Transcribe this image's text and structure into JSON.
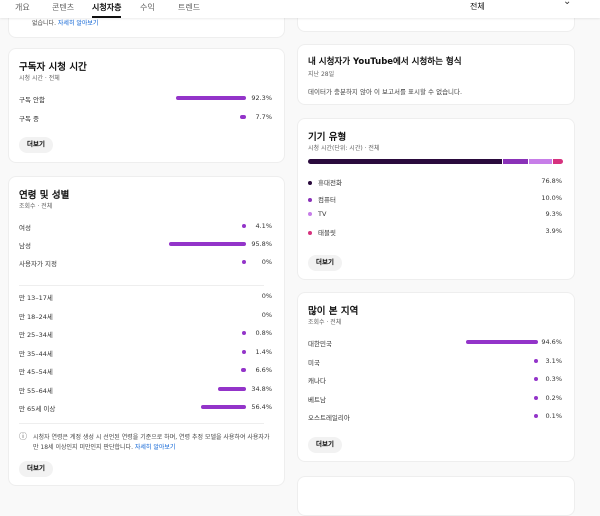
{
  "header": {
    "tabs": [
      "개요",
      "콘텐츠",
      "시청자층",
      "수익",
      "트렌드"
    ],
    "active_tab": 2,
    "filter": "전체"
  },
  "top_card": {
    "text": "없습니다. ",
    "link": "자세히 알아보기"
  },
  "subscriber_watch": {
    "title": "구독자 시청 시간",
    "subtitle": "시청 시간 · 전체",
    "rows": [
      {
        "label": "구독 안함",
        "value": 92.3,
        "pct": "92.3%"
      },
      {
        "label": "구독 중",
        "value": 7.7,
        "pct": "7.7%"
      }
    ],
    "button": "더보기"
  },
  "age_gender": {
    "title": "연령 및 성별",
    "subtitle": "조회수 · 전체",
    "gender": [
      {
        "label": "여성",
        "value": 4.1,
        "pct": "4.1%"
      },
      {
        "label": "남성",
        "value": 95.8,
        "pct": "95.8%"
      },
      {
        "label": "사용자가 지정",
        "value": 0,
        "pct": "0%"
      }
    ],
    "ages": [
      {
        "label": "만 13–17세",
        "value": 0,
        "pct": "0%"
      },
      {
        "label": "만 18–24세",
        "value": 0,
        "pct": "0%"
      },
      {
        "label": "만 25–34세",
        "value": 0.8,
        "pct": "0.8%"
      },
      {
        "label": "만 35–44세",
        "value": 1.4,
        "pct": "1.4%"
      },
      {
        "label": "만 45–54세",
        "value": 6.6,
        "pct": "6.6%"
      },
      {
        "label": "만 55–64세",
        "value": 34.8,
        "pct": "34.8%"
      },
      {
        "label": "만 65세 이상",
        "value": 56.4,
        "pct": "56.4%"
      }
    ],
    "note": "시청자 연령은 계정 생성 시 선언된 연령을 기준으로 하며, 연령 추정 모델을 사용하여 사용자가 만 18세 이상인지 미만인지 판단합니다. ",
    "note_link": "자세히 알아보기",
    "button": "더보기"
  },
  "formats": {
    "title": "내 시청자가 YouTube에서 시청하는 형식",
    "subtitle": "지난 28일",
    "message": "데이터가 충분하지 않아 이 보고서를 표시할 수 없습니다."
  },
  "device": {
    "title": "기기 유형",
    "subtitle": "시청 시간(단위: 시간) · 전체",
    "rows": [
      {
        "label": "휴대전화",
        "value": 76.8,
        "pct": "76.8%",
        "color": "#2a0a3d"
      },
      {
        "label": "컴퓨터",
        "value": 10.0,
        "pct": "10.0%",
        "color": "#8a31b8"
      },
      {
        "label": "TV",
        "value": 9.3,
        "pct": "9.3%",
        "color": "#c77ee8"
      },
      {
        "label": "태블릿",
        "value": 3.9,
        "pct": "3.9%",
        "color": "#d6327e"
      }
    ],
    "button": "더보기"
  },
  "regions": {
    "title": "많이 본 지역",
    "subtitle": "조회수 · 전체",
    "rows": [
      {
        "label": "대한민국",
        "value": 94.6,
        "pct": "94.6%"
      },
      {
        "label": "미국",
        "value": 3.1,
        "pct": "3.1%"
      },
      {
        "label": "캐나다",
        "value": 0.3,
        "pct": "0.3%"
      },
      {
        "label": "베트남",
        "value": 0.2,
        "pct": "0.2%"
      },
      {
        "label": "오스트레일리아",
        "value": 0.1,
        "pct": "0.1%"
      }
    ],
    "button": "더보기"
  },
  "colors": {
    "bar": "#9334c9",
    "link": "#065fd4"
  }
}
